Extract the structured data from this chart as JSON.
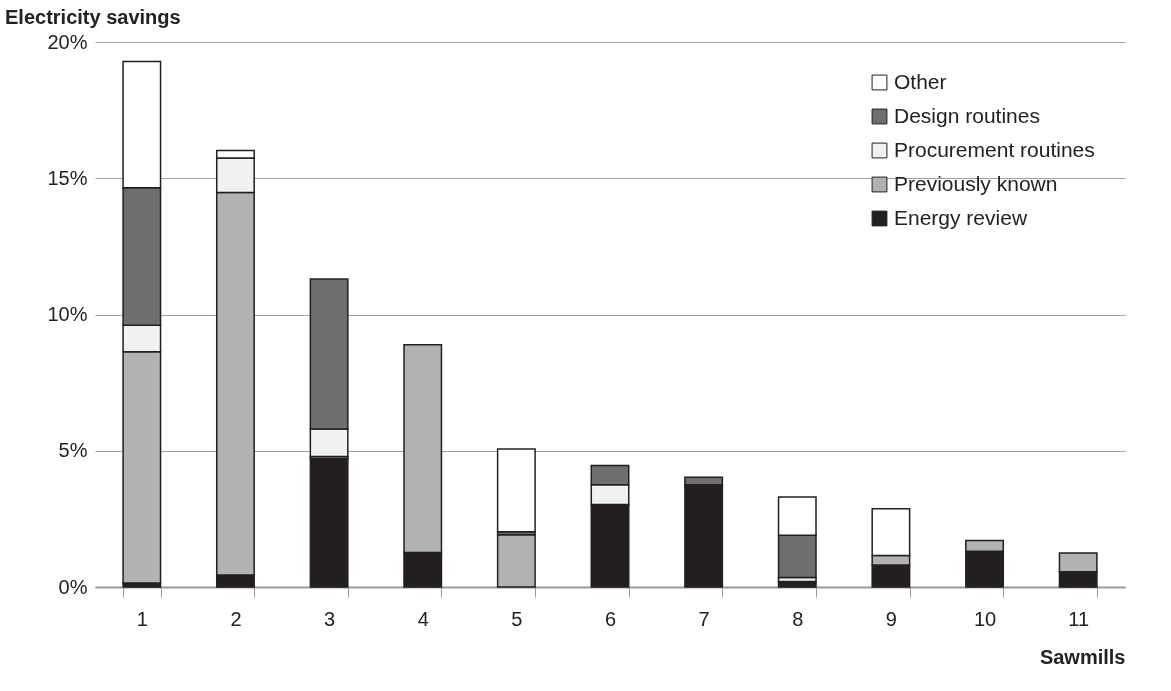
{
  "chart_data": {
    "type": "bar",
    "stacked": true,
    "title": "Electricity savings",
    "xlabel": "Sawmills",
    "categories": [
      "1",
      "2",
      "3",
      "4",
      "5",
      "6",
      "7",
      "8",
      "9",
      "10",
      "11"
    ],
    "series": [
      {
        "name": "Energy review",
        "color": "#231f20",
        "values": [
          0.15,
          0.44,
          4.72,
          1.27,
          0,
          3.03,
          3.75,
          0.2,
          0.81,
          1.31,
          0.56
        ]
      },
      {
        "name": "Previously known",
        "color": "#b1b2b4",
        "values": [
          8.48,
          14.04,
          0.07,
          7.62,
          1.92,
          0,
          0,
          0,
          0.35,
          0.4,
          0.69
        ]
      },
      {
        "name": "Procurement routines",
        "color": "#f0f1f2",
        "values": [
          0.98,
          1.26,
          1.01,
          0,
          0,
          0.72,
          0,
          0.15,
          0,
          0,
          0
        ]
      },
      {
        "name": "Design routines",
        "color": "#6e6e6e",
        "values": [
          5.04,
          0,
          5.5,
          0,
          0.11,
          0.71,
          0.28,
          1.55,
          0,
          0,
          0
        ]
      },
      {
        "name": "Other",
        "color": "#ffffff",
        "values": [
          4.63,
          0.28,
          0,
          0,
          3.03,
          0,
          0,
          1.4,
          1.71,
          0,
          0
        ]
      }
    ],
    "ylim": [
      0,
      20
    ],
    "yticks": [
      {
        "value": 0,
        "label": "0%"
      },
      {
        "value": 5,
        "label": "5%"
      },
      {
        "value": 10,
        "label": "10%"
      },
      {
        "value": 15,
        "label": "15%"
      },
      {
        "value": 20,
        "label": "20%"
      }
    ],
    "grid": "y",
    "legend": "top right"
  }
}
